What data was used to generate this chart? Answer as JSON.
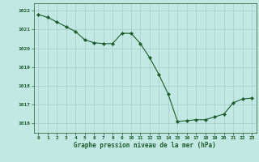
{
  "x": [
    0,
    1,
    2,
    3,
    4,
    5,
    6,
    7,
    8,
    9,
    10,
    11,
    12,
    13,
    14,
    15,
    16,
    17,
    18,
    19,
    20,
    21,
    22,
    23
  ],
  "y": [
    1021.8,
    1021.65,
    1021.4,
    1021.15,
    1020.9,
    1020.45,
    1020.3,
    1020.25,
    1020.25,
    1020.8,
    1020.8,
    1020.25,
    1019.5,
    1018.6,
    1017.55,
    1016.1,
    1016.15,
    1016.2,
    1016.2,
    1016.35,
    1016.5,
    1017.1,
    1017.3,
    1017.35
  ],
  "line_color": "#1a5c2a",
  "marker_color": "#1a5c2a",
  "bg_color": "#c2e8e4",
  "grid_color": "#a8ccc8",
  "xlabel": "Graphe pression niveau de la mer (hPa)",
  "xlabel_color": "#1a5c2a",
  "tick_color": "#1a5c2a",
  "ylim": [
    1015.5,
    1022.4
  ],
  "xlim": [
    -0.5,
    23.5
  ],
  "yticks": [
    1016,
    1017,
    1018,
    1019,
    1020,
    1021,
    1022
  ],
  "xticks": [
    0,
    1,
    2,
    3,
    4,
    5,
    6,
    7,
    8,
    9,
    10,
    11,
    12,
    13,
    14,
    15,
    16,
    17,
    18,
    19,
    20,
    21,
    22,
    23
  ]
}
